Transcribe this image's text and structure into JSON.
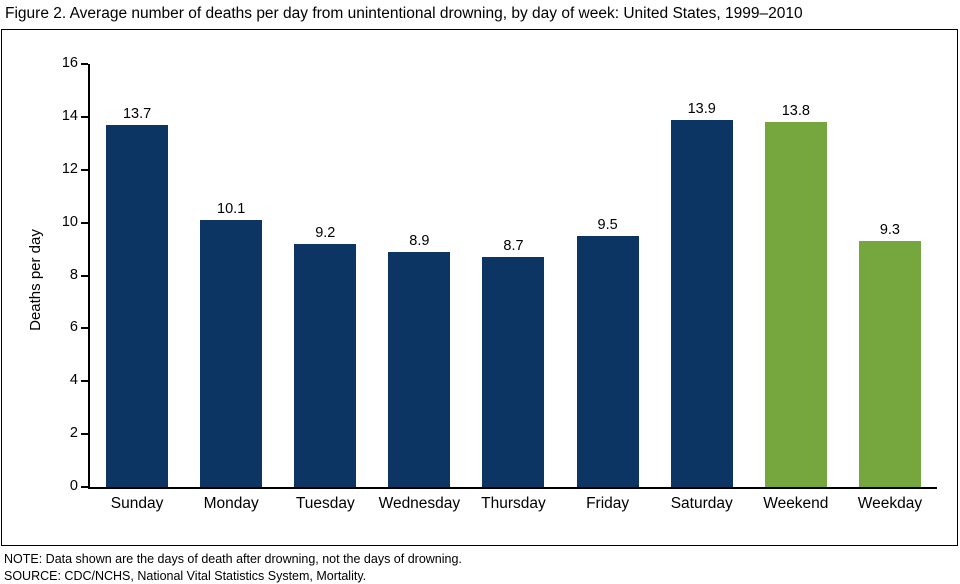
{
  "title": "Figure 2. Average number of deaths per day from unintentional drowning, by day of week: United States, 1999–2010",
  "notes": {
    "note_line": "NOTE: Data shown are the days of death after drowning, not the days of drowning.",
    "source_line": "SOURCE: CDC/NCHS, National Vital Statistics System, Mortality."
  },
  "colors": {
    "navy": "#0c3564",
    "green": "#76a73e"
  },
  "chart_data": {
    "type": "bar",
    "title": "Figure 2. Average number of deaths per day from unintentional drowning, by day of week: United States, 1999–2010",
    "categories": [
      "Sunday",
      "Monday",
      "Tuesday",
      "Wednesday",
      "Thursday",
      "Friday",
      "Saturday",
      "Weekend",
      "Weekday"
    ],
    "values": [
      13.7,
      10.1,
      9.2,
      8.9,
      8.7,
      9.5,
      13.9,
      13.8,
      9.3
    ],
    "bar_colors": [
      "navy",
      "navy",
      "navy",
      "navy",
      "navy",
      "navy",
      "navy",
      "green",
      "green"
    ],
    "value_labels": [
      13.7,
      10.1,
      9.2,
      8.9,
      8.7,
      9.5,
      13.9,
      13.8,
      9.3
    ],
    "xlabel": "",
    "ylabel": "Deaths per day",
    "ylim": [
      0,
      16
    ],
    "yticks": [
      0,
      2,
      4,
      6,
      8,
      10,
      12,
      14,
      16
    ],
    "grid": false,
    "legend": "none"
  }
}
